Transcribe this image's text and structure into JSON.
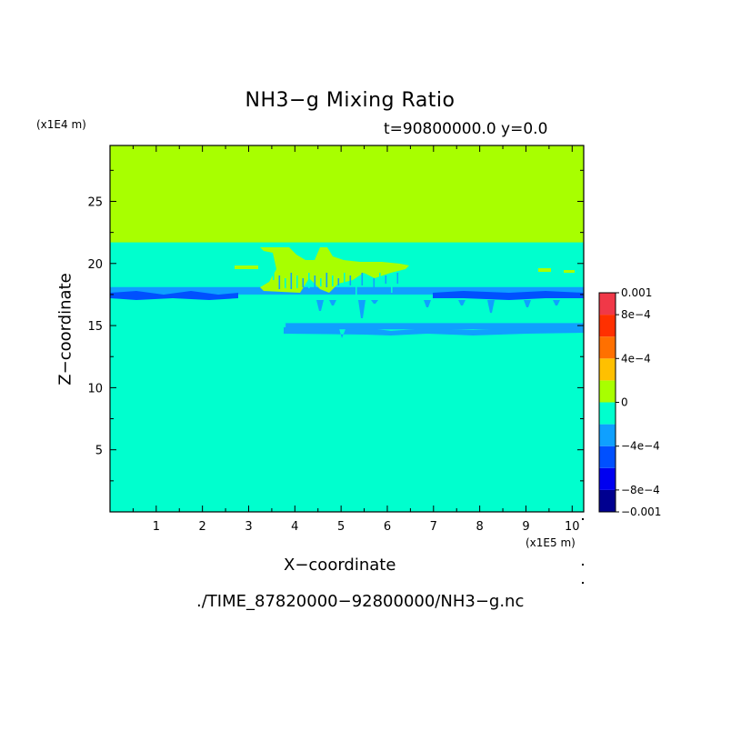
{
  "title": "NH3−g Mixing Ratio",
  "subtitle": "t=90800000.0 y=0.0",
  "z_unit": "(x1E4 m)",
  "x_unit": "(x1E5 m)",
  "xlabel": "X−coordinate",
  "ylabel": "Z−coordinate",
  "footer": "./TIME_87820000−92800000/NH3−g.nc",
  "chart_data": {
    "type": "heatmap",
    "xlim": [
      0,
      10.25
    ],
    "ylim": [
      0,
      29.5
    ],
    "x_ticks": [
      1,
      2,
      3,
      4,
      5,
      6,
      7,
      8,
      9,
      10
    ],
    "y_ticks": [
      5,
      10,
      15,
      20,
      25
    ],
    "colorbar": {
      "levels": [
        -0.001,
        -0.0008,
        -0.0006,
        -0.0004,
        -0.0002,
        0,
        0.0002,
        0.0004,
        0.0006,
        0.0008,
        0.001
      ],
      "tick_labels": [
        {
          "value": 0.001,
          "label": "0.001"
        },
        {
          "value": 0.0008,
          "label": "8e−4"
        },
        {
          "value": 0.0004,
          "label": "4e−4"
        },
        {
          "value": 0,
          "label": "0"
        },
        {
          "value": -0.0004,
          "label": "−4e−4"
        },
        {
          "value": -0.0008,
          "label": "−8e−4"
        },
        {
          "value": -0.001,
          "label": "−0.001"
        }
      ],
      "colors": [
        "#000090",
        "#0000f0",
        "#0050ff",
        "#0fa0ff",
        "#00ffce",
        "#a8ff00",
        "#ffc000",
        "#ff7000",
        "#ff3000",
        "#f03848"
      ]
    },
    "regions": [
      {
        "name": "background",
        "x": [
          0,
          10.25
        ],
        "z": [
          0,
          29.5
        ],
        "color": "#00ffce"
      },
      {
        "name": "upper-layer",
        "x": [
          0,
          10.25
        ],
        "z": [
          21.7,
          29.5
        ],
        "color": "#a8ff00"
      },
      {
        "name": "blue-band-upper",
        "x": [
          0,
          10.25
        ],
        "z": [
          17.5,
          18.1
        ],
        "color": "#0fa0ff"
      },
      {
        "name": "blue-band-lower",
        "x": [
          3.8,
          10.25
        ],
        "z": [
          14.7,
          15.2
        ],
        "color": "#0fa0ff"
      }
    ]
  }
}
